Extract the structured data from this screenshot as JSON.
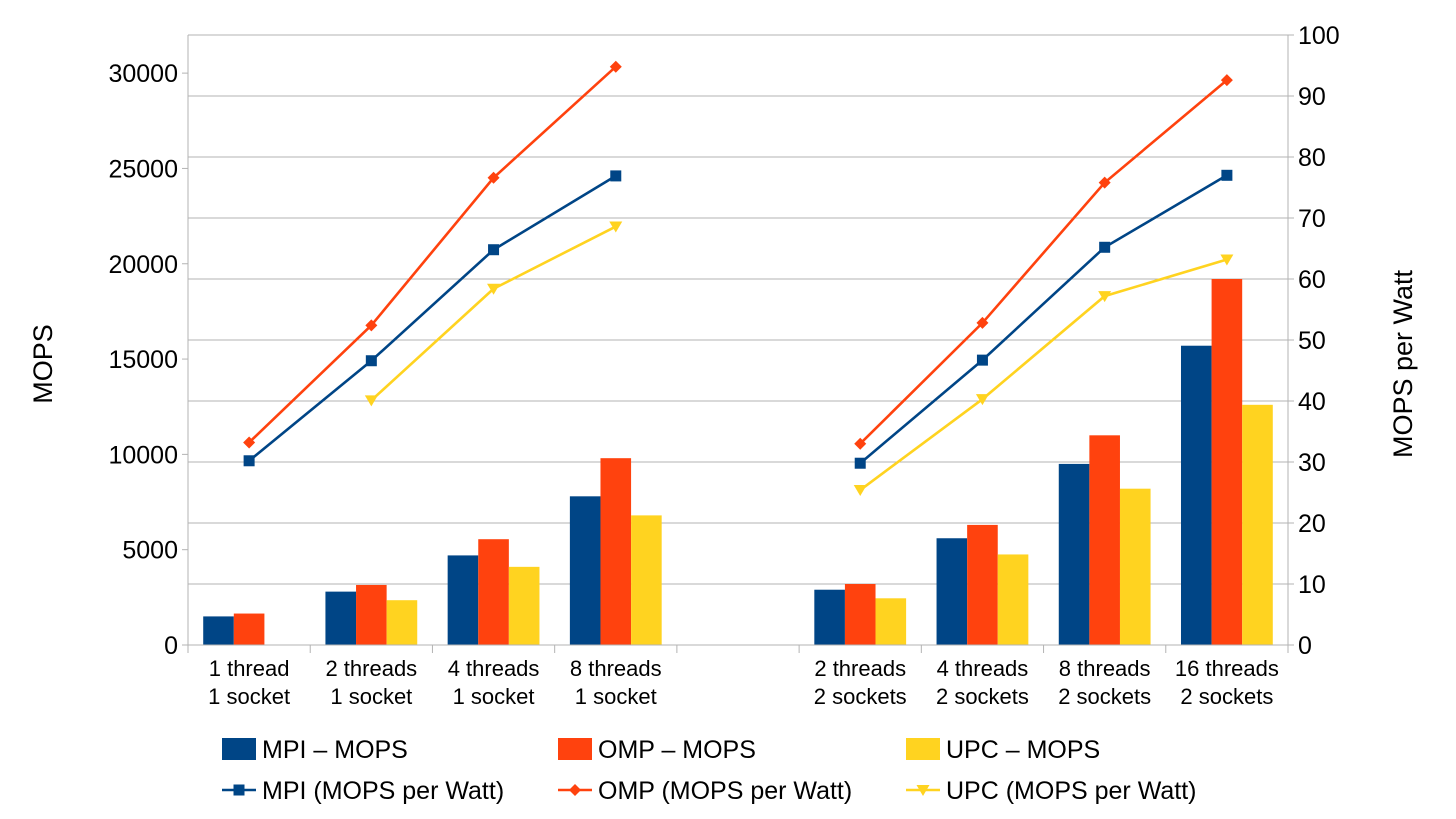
{
  "chart_data": {
    "type": "bar",
    "categories": [
      [
        "1 thread",
        "1 socket"
      ],
      [
        "2 threads",
        "1 socket"
      ],
      [
        "4 threads",
        "1 socket"
      ],
      [
        "8 threads",
        "1 socket"
      ],
      [
        "",
        ""
      ],
      [
        "2 threads",
        "2 sockets"
      ],
      [
        "4 threads",
        "2 sockets"
      ],
      [
        "8 threads",
        "2 sockets"
      ],
      [
        "16 threads",
        "2 sockets"
      ]
    ],
    "ylabel": "MOPS",
    "y2label": "MOPS per Watt",
    "ylim": [
      0,
      32000
    ],
    "y2lim": [
      0,
      100
    ],
    "yticks": [
      0,
      5000,
      10000,
      15000,
      20000,
      25000,
      30000
    ],
    "y2ticks": [
      0,
      10,
      20,
      30,
      40,
      50,
      60,
      70,
      80,
      90,
      100
    ],
    "grid": true,
    "legend_position": "bottom",
    "bar_series": [
      {
        "name": "MPI – MOPS",
        "color": "#004586",
        "values": [
          1500,
          2800,
          4700,
          7800,
          null,
          2900,
          5600,
          9500,
          15700
        ]
      },
      {
        "name": "OMP – MOPS",
        "color": "#FF420E",
        "values": [
          1650,
          3150,
          5550,
          9800,
          null,
          3200,
          6300,
          11000,
          19200
        ]
      },
      {
        "name": "UPC – MOPS",
        "color": "#FFD320",
        "values": [
          null,
          2350,
          4100,
          6800,
          null,
          2450,
          4750,
          8200,
          12600
        ]
      }
    ],
    "line_series": [
      {
        "name": "MPI (MOPS per Watt)",
        "color": "#004586",
        "marker": "square",
        "axis": "right",
        "values": [
          30.2,
          46.6,
          64.8,
          76.9,
          null,
          29.8,
          46.7,
          65.2,
          77.0
        ]
      },
      {
        "name": "OMP (MOPS per Watt)",
        "color": "#FF420E",
        "marker": "diamond",
        "axis": "right",
        "values": [
          33.2,
          52.4,
          76.6,
          94.8,
          null,
          33.0,
          52.8,
          75.8,
          92.6
        ]
      },
      {
        "name": "UPC (MOPS per Watt)",
        "color": "#FFD320",
        "marker": "triangle-down",
        "axis": "right",
        "values": [
          null,
          40.1,
          58.4,
          68.6,
          null,
          25.4,
          40.3,
          57.2,
          63.2
        ]
      }
    ]
  }
}
